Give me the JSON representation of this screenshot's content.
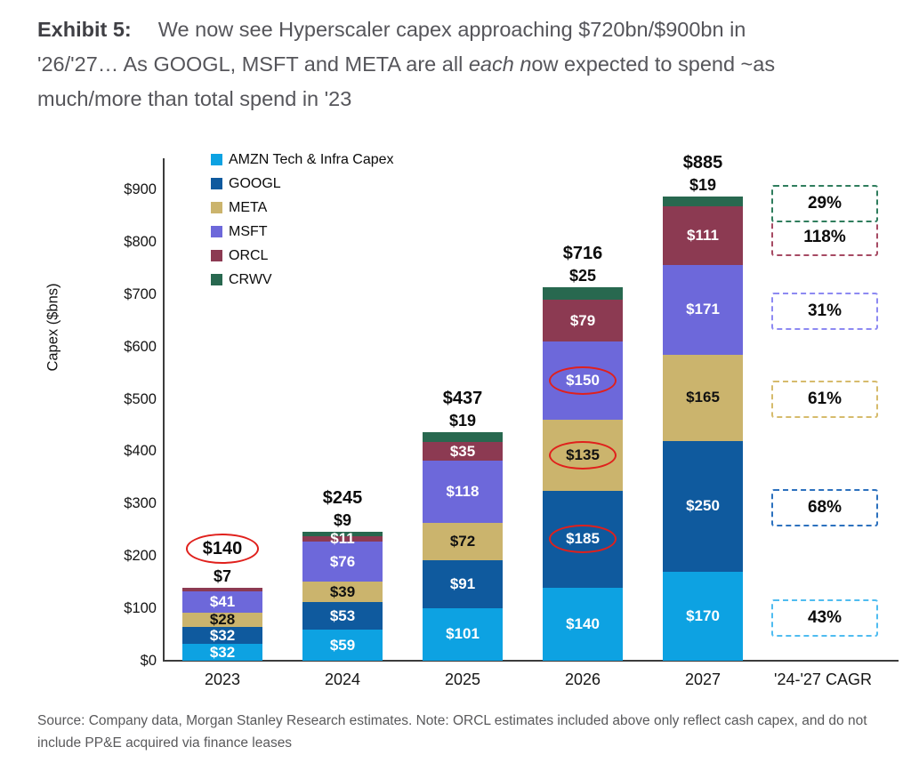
{
  "header": {
    "exhibit_label": "Exhibit 5:",
    "title_line1": "We now see Hyperscaler capex approaching $720bn/$900bn in",
    "title_line2_pre": "'26/'27… As GOOGL, MSFT and META are all ",
    "title_line2_italic": "each n",
    "title_line2_post": "ow expected to spend ~as",
    "title_line3": "much/more than total spend in '23"
  },
  "chart_data": {
    "type": "bar",
    "subtype": "stacked",
    "title": "We now see Hyperscaler capex approaching $720bn/$900bn in '26/'27… As GOOGL, MSFT and META are all each now expected to spend ~as much/more than total spend in '23",
    "ylabel": "Capex ($bns)",
    "ylim": [
      0,
      900
    ],
    "ytick_interval": 100,
    "ytick_prefix": "$",
    "grid": false,
    "legend_position": "top-left-inside",
    "categories": [
      "2023",
      "2024",
      "2025",
      "2026",
      "2027"
    ],
    "cagr_column_label": "'24-'27 CAGR",
    "series": [
      {
        "name": "AMZN Tech & Infra Capex",
        "ticker": "AMZN",
        "color": "#0DA2E2",
        "label_color": "#ffffff",
        "values": [
          32,
          59,
          101,
          140,
          170
        ],
        "cagr": "43%",
        "cagr_color": "#4FBCF0"
      },
      {
        "name": "GOOGL",
        "ticker": "GOOGL",
        "color": "#0F5A9E",
        "label_color": "#ffffff",
        "values": [
          32,
          53,
          91,
          185,
          250
        ],
        "cagr": "68%",
        "cagr_color": "#2C71BE"
      },
      {
        "name": "META",
        "ticker": "META",
        "color": "#CBB46D",
        "label_color": "#111111",
        "values": [
          28,
          39,
          72,
          135,
          165
        ],
        "cagr": "61%",
        "cagr_color": "#D6BB6C"
      },
      {
        "name": "MSFT",
        "ticker": "MSFT",
        "color": "#6D68DA",
        "label_color": "#ffffff",
        "values": [
          41,
          76,
          118,
          150,
          171
        ],
        "cagr": "31%",
        "cagr_color": "#8D89F2"
      },
      {
        "name": "ORCL",
        "ticker": "ORCL",
        "color": "#8C3A52",
        "label_color": "#ffffff",
        "values": [
          7,
          11,
          35,
          79,
          111
        ],
        "cagr": "118%",
        "cagr_color": "#A64A63"
      },
      {
        "name": "CRWV",
        "ticker": "CRWV",
        "color": "#28684F",
        "label_color": "#111111",
        "values": [
          0,
          9,
          19,
          25,
          19
        ],
        "cagr": "29%",
        "cagr_color": "#2F7D5D"
      }
    ],
    "totals": [
      "$140",
      "$245",
      "$437",
      "$716",
      "$885"
    ],
    "outside_label_series": [
      "ORCL",
      "CRWV",
      "CRWV",
      "CRWV",
      "CRWV"
    ],
    "circled_totals": [
      "2023"
    ],
    "circled_segment_labels": [
      {
        "category": "2026",
        "series": [
          "GOOGL",
          "META",
          "MSFT"
        ]
      }
    ],
    "annotation_color": "#E0201C"
  },
  "footer": {
    "source_note": "Source: Company data, Morgan Stanley Research estimates. Note: ORCL estimates included above only reflect cash capex, and do not include PP&E acquired via finance leases"
  }
}
